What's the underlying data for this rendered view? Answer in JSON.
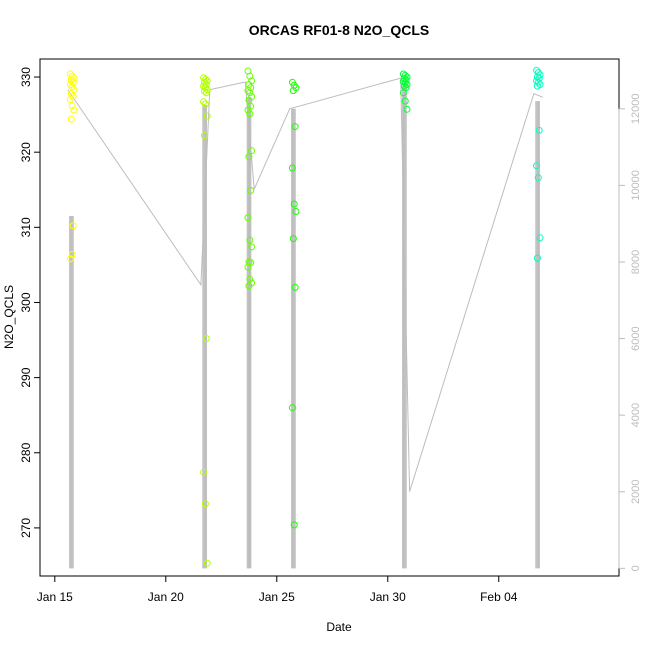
{
  "chart_data": {
    "type": "scatter",
    "title": "ORCAS RF01-8 N2O_QCLS",
    "xlabel": "Date",
    "ylabel": "N2O_QCLS",
    "x_axis": {
      "type": "date",
      "range": [
        "2016-01-14T08:00",
        "2016-02-09T10:00"
      ],
      "ticks": [
        {
          "date": "2016-01-15",
          "label": "Jan 15"
        },
        {
          "date": "2016-01-20",
          "label": "Jan 20"
        },
        {
          "date": "2016-01-25",
          "label": "Jan 25"
        },
        {
          "date": "2016-01-30",
          "label": "Jan 30"
        },
        {
          "date": "2016-02-04",
          "label": "Feb 04"
        }
      ]
    },
    "y_axis": {
      "range": [
        263.6,
        332.4
      ],
      "ticks": [
        270,
        280,
        290,
        300,
        310,
        320,
        330
      ]
    },
    "y2_axis": {
      "note_color": "#bdbdbd",
      "range": [
        -200,
        13300
      ],
      "ticks": [
        0,
        2000,
        4000,
        6000,
        8000,
        10000,
        12000
      ]
    },
    "flights": [
      {
        "date": "2016-01-15",
        "start_hour": 14.0,
        "end_hour": 23.6,
        "color": "#ffff00",
        "values": [
          330.4,
          330.1,
          329.8,
          329.6,
          329.3,
          329.0,
          328.7,
          328.3,
          327.8,
          327.4,
          327.0,
          326.2,
          325.6,
          324.4,
          310.2,
          305.8,
          306.4
        ]
      },
      {
        "date": "2016-01-21",
        "start_hour": 14.0,
        "end_hour": 23.6,
        "color": "#b2ff00",
        "values": [
          329.9,
          329.7,
          329.5,
          329.3,
          329.0,
          328.8,
          328.6,
          328.3,
          328.1,
          327.9,
          326.7,
          326.4,
          324.8,
          322.2,
          295.2,
          277.4,
          273.2,
          265.3
        ]
      },
      {
        "date": "2016-01-23",
        "start_hour": 14.0,
        "end_hour": 23.6,
        "color": "#66ff00",
        "values": [
          330.8,
          330.1,
          329.5,
          329.0,
          328.6,
          328.2,
          327.9,
          327.4,
          326.9,
          326.1,
          325.6,
          325.1,
          320.2,
          319.4,
          314.9,
          311.3,
          308.3,
          307.4,
          305.4,
          305.3,
          304.7,
          303.1,
          302.6,
          302.2
        ]
      },
      {
        "date": "2016-01-25",
        "start_hour": 14.0,
        "end_hour": 23.6,
        "color": "#19ff00",
        "values": [
          329.3,
          328.9,
          328.6,
          328.2,
          323.4,
          317.9,
          313.1,
          312.1,
          308.5,
          302.0,
          286.0,
          270.4
        ]
      },
      {
        "date": "2016-01-30",
        "start_hour": 14.0,
        "end_hour": 23.6,
        "color": "#00ff33",
        "values": [
          330.4,
          330.2,
          330.0,
          329.8,
          329.6,
          329.4,
          329.2,
          329.0,
          328.8,
          328.6,
          327.9,
          326.8,
          325.7
        ]
      },
      {
        "date": "2016-02-05",
        "start_hour": 14.0,
        "end_hour": 23.6,
        "color": "#00ffbf",
        "values": [
          330.9,
          330.6,
          330.3,
          330.0,
          329.8,
          329.5,
          329.3,
          329.0,
          328.8,
          322.9,
          318.2,
          316.6,
          308.6,
          305.9
        ]
      }
    ],
    "altitude_series": {
      "color": "#bdbdbd",
      "axis": "right",
      "points": [
        {
          "date": "2016-01-15",
          "hour": 14.0,
          "value": 12500
        },
        {
          "date": "2016-01-21",
          "hour": 14.0,
          "value": 7400
        },
        {
          "date": "2016-01-21",
          "hour": 23.6,
          "value": 12500
        },
        {
          "date": "2016-01-23",
          "hour": 14.0,
          "value": 12700
        },
        {
          "date": "2016-01-23",
          "hour": 23.6,
          "value": 9900
        },
        {
          "date": "2016-01-25",
          "hour": 14.0,
          "value": 12000
        },
        {
          "date": "2016-01-30",
          "hour": 14.0,
          "value": 12800
        },
        {
          "date": "2016-01-30",
          "hour": 23.6,
          "value": 2000
        },
        {
          "date": "2016-02-05",
          "hour": 14.0,
          "value": 12400
        },
        {
          "date": "2016-02-05",
          "hour": 23.6,
          "value": 12300
        }
      ],
      "profiles": [
        {
          "date": "2016-01-15",
          "min": 0,
          "max": 9200
        },
        {
          "date": "2016-01-21",
          "min": 0,
          "max": 12100
        },
        {
          "date": "2016-01-23",
          "min": 0,
          "max": 12300
        },
        {
          "date": "2016-01-25",
          "min": 0,
          "max": 12000
        },
        {
          "date": "2016-01-30",
          "min": 0,
          "max": 12600
        },
        {
          "date": "2016-02-05",
          "min": 0,
          "max": 12200
        }
      ]
    }
  }
}
